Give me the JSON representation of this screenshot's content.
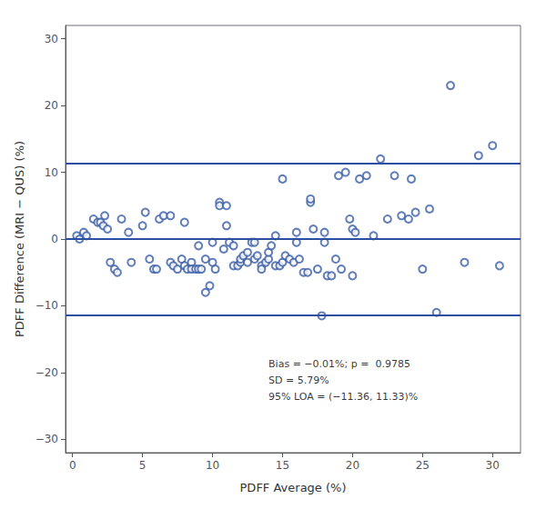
{
  "chart_data": {
    "type": "scatter",
    "x_label": "PDFF Average (%)",
    "y_label": "PDFF Difference (MRI − QUS) (%)",
    "xlim": [
      -0.5,
      32
    ],
    "ylim": [
      -32,
      32
    ],
    "xticks": [
      0,
      5,
      10,
      15,
      20,
      25,
      30
    ],
    "yticks": [
      {
        "value": -30,
        "label": "−30"
      },
      {
        "value": -20,
        "label": "−20"
      },
      {
        "value": -10,
        "label": "−10"
      },
      0,
      10,
      20,
      30
    ],
    "grid": false,
    "series": [
      {
        "type": "scatter",
        "marker": "open_circle",
        "color": "#3A5EA8",
        "x": [
          0.3,
          0.5,
          0.8,
          1.0,
          1.5,
          1.8,
          2.0,
          2.2,
          2.3,
          2.5,
          2.7,
          3.0,
          3.2,
          3.5,
          4.0,
          4.2,
          5.0,
          5.2,
          5.5,
          5.8,
          6.0,
          6.2,
          6.5,
          7.0,
          7.0,
          7.2,
          7.5,
          7.8,
          8.0,
          8.0,
          8.2,
          8.5,
          8.5,
          8.8,
          9.0,
          9.0,
          9.2,
          9.5,
          9.5,
          9.8,
          10.0,
          10.0,
          10.2,
          10.5,
          10.5,
          10.8,
          11.0,
          11.0,
          11.2,
          11.5,
          11.5,
          11.8,
          12.0,
          12.0,
          12.2,
          12.5,
          12.5,
          12.8,
          13.0,
          13.0,
          13.2,
          13.5,
          13.5,
          13.8,
          14.0,
          14.0,
          14.2,
          14.5,
          14.5,
          14.8,
          15.0,
          15.0,
          15.2,
          15.5,
          15.8,
          16.0,
          16.0,
          16.2,
          16.5,
          16.8,
          17.0,
          17.0,
          17.2,
          17.5,
          17.8,
          18.0,
          18.0,
          18.2,
          18.5,
          18.8,
          19.0,
          19.2,
          19.5,
          19.8,
          20.0,
          20.0,
          20.2,
          20.5,
          21.0,
          21.5,
          22.0,
          22.5,
          23.0,
          23.5,
          24.0,
          24.2,
          24.5,
          25.0,
          25.5,
          26.0,
          27.0,
          28.0,
          29.0,
          30.0,
          30.5
        ],
        "values": [
          0.5,
          0.0,
          1.0,
          0.5,
          3.0,
          2.5,
          2.5,
          2.0,
          3.5,
          1.5,
          -3.5,
          -4.5,
          -5.0,
          3.0,
          1.0,
          -3.5,
          2.0,
          4.0,
          -3.0,
          -4.5,
          -4.5,
          3.0,
          3.5,
          3.5,
          -3.5,
          -4.0,
          -4.5,
          -3.0,
          -4.0,
          2.5,
          -4.5,
          -3.5,
          -4.5,
          -4.5,
          -1.0,
          -4.5,
          -4.5,
          -3.0,
          -8.0,
          -7.0,
          -0.5,
          -3.5,
          -4.5,
          5.5,
          5.0,
          -1.5,
          2.0,
          5.0,
          -0.5,
          -1.0,
          -4.0,
          -4.0,
          -3.5,
          -3.0,
          -2.5,
          -2.0,
          -3.5,
          -0.5,
          -3.0,
          -0.5,
          -2.5,
          -4.0,
          -4.5,
          -3.5,
          -3.0,
          -2.0,
          -1.0,
          -4.0,
          0.5,
          -4.0,
          -3.5,
          9.0,
          -2.5,
          -3.0,
          -3.5,
          -0.5,
          1.0,
          -3.0,
          -5.0,
          -5.0,
          5.5,
          6.0,
          1.5,
          -4.5,
          -11.5,
          1.0,
          -0.5,
          -5.5,
          -5.5,
          -3.0,
          9.5,
          -4.5,
          10.0,
          3.0,
          1.5,
          -5.5,
          1.0,
          9.0,
          9.5,
          0.5,
          12.0,
          3.0,
          9.5,
          3.5,
          3.0,
          9.0,
          4.0,
          -4.5,
          4.5,
          -11.0,
          23.0,
          -3.5,
          12.5,
          14.0,
          -4.0
        ]
      }
    ],
    "reference_lines": {
      "color": "#2B4EA0",
      "values": [
        -0.01,
        11.33,
        -11.36
      ]
    },
    "annotation": {
      "text": "Bias = −0.01%; p =  0.9785\nSD = 5.79%\n95% LOA = (−11.36, 11.33)%",
      "x": 14.0,
      "y": -17.5
    }
  }
}
